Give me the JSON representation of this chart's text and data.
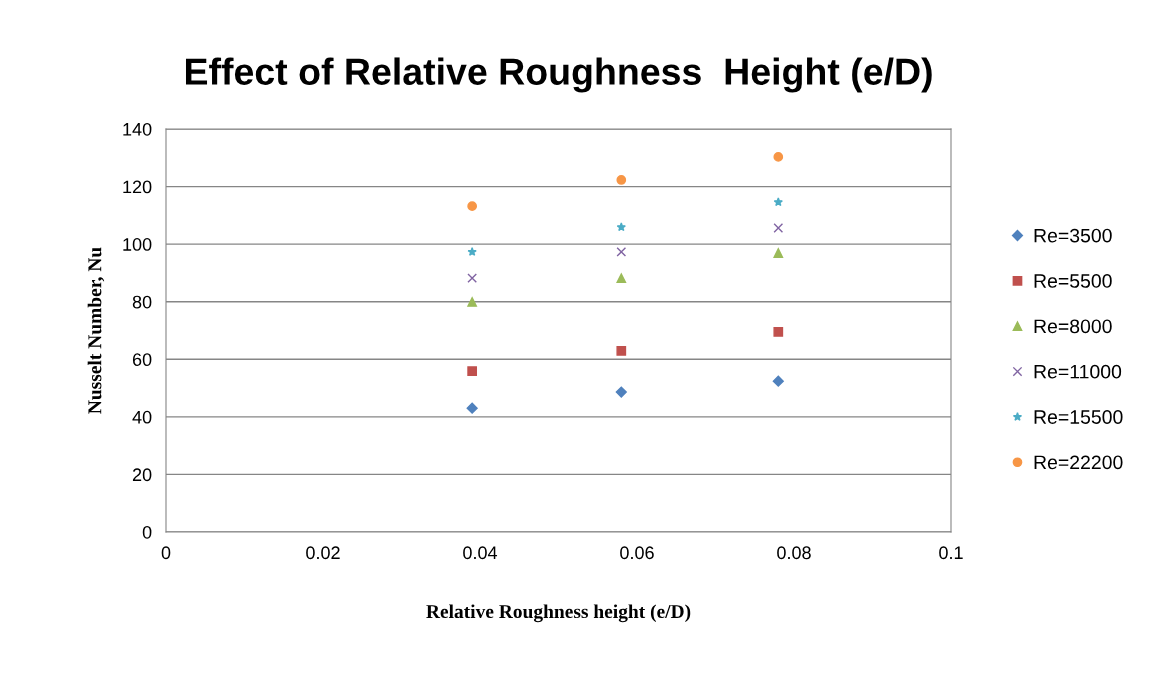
{
  "chart_data": {
    "type": "scatter",
    "title": "Effect of Relative Roughness  Height (e/D)",
    "xlabel": "Relative Roughness height (e/D)",
    "ylabel": "Nusselt Number, Nu",
    "x": [
      0.039,
      0.058,
      0.078
    ],
    "series": [
      {
        "name": "Re=3500",
        "color": "#4f81bd",
        "marker": "diamond",
        "values": [
          43,
          48.6,
          52.4
        ]
      },
      {
        "name": "Re=5500",
        "color": "#c0504d",
        "marker": "square",
        "values": [
          55.9,
          62.9,
          69.5
        ]
      },
      {
        "name": "Re=8000",
        "color": "#9bbb59",
        "marker": "triangle",
        "values": [
          79.9,
          88.2,
          96.9
        ]
      },
      {
        "name": "Re=11000",
        "color": "#8064a2",
        "marker": "cross",
        "values": [
          88.2,
          97.3,
          105.6
        ]
      },
      {
        "name": "Re=15500",
        "color": "#4bacc6",
        "marker": "star",
        "values": [
          97.3,
          105.9,
          114.6
        ]
      },
      {
        "name": "Re=22200",
        "color": "#f79646",
        "marker": "circle",
        "values": [
          113.2,
          122.3,
          130.3
        ]
      }
    ],
    "xlim": [
      0,
      0.1
    ],
    "xticks": [
      0,
      0.02,
      0.04,
      0.06,
      0.08,
      0.1
    ],
    "ylim": [
      0,
      140
    ],
    "yticks": [
      0,
      20,
      40,
      60,
      80,
      100,
      120,
      140
    ],
    "grid": "y",
    "legend": "right"
  }
}
